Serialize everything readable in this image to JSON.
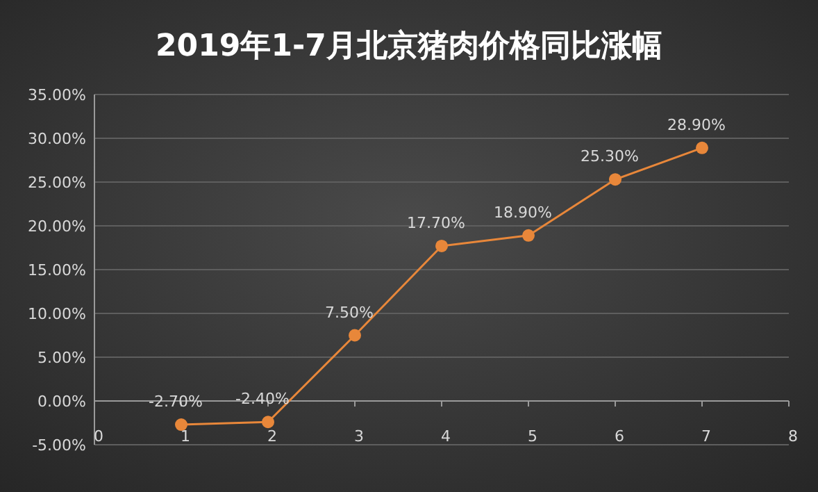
{
  "chart_data": {
    "type": "line",
    "title": "2019年1-7月北京猪肉价格同比涨幅",
    "x": [
      1,
      2,
      3,
      4,
      5,
      6,
      7
    ],
    "series": [
      {
        "color": "#e8873a",
        "values": [
          -2.7,
          -2.4,
          7.5,
          17.7,
          18.9,
          25.3,
          28.9
        ],
        "value_labels": [
          "-2.70%",
          "-2.40%",
          "7.50%",
          "17.70%",
          "18.90%",
          "25.30%",
          "28.90%"
        ]
      }
    ],
    "xlim": [
      0,
      8
    ],
    "xticks": [
      0,
      1,
      2,
      3,
      4,
      5,
      6,
      7,
      8
    ],
    "ylim": [
      -5,
      35
    ],
    "yticks": [
      {
        "value": -5,
        "label": "-5.00%"
      },
      {
        "value": 0,
        "label": "0.00%"
      },
      {
        "value": 5,
        "label": "5.00%"
      },
      {
        "value": 10,
        "label": "10.00%"
      },
      {
        "value": 15,
        "label": "15.00%"
      },
      {
        "value": 20,
        "label": "20.00%"
      },
      {
        "value": 25,
        "label": "25.00%"
      },
      {
        "value": 30,
        "label": "30.00%"
      },
      {
        "value": 35,
        "label": "35.00%"
      }
    ],
    "grid": "y",
    "marker": "circle",
    "line_style": "solid"
  }
}
